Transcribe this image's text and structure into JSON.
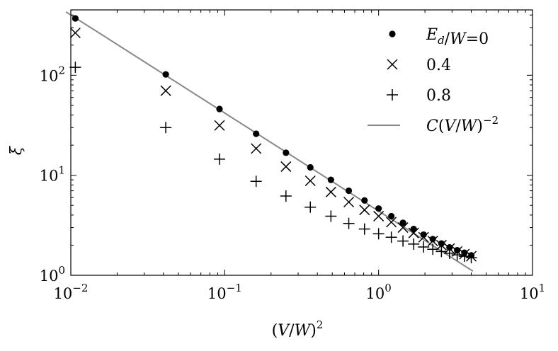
{
  "chart_data": {
    "type": "scatter",
    "xscale": "log",
    "yscale": "log",
    "xlim": [
      0.01,
      10
    ],
    "ylim": [
      1,
      450
    ],
    "xlabel": "(V/W)^2",
    "ylabel": "ξ",
    "x_ticks": [
      {
        "value": 0.01,
        "base": "10",
        "exp": "−2"
      },
      {
        "value": 0.1,
        "base": "10",
        "exp": "−1"
      },
      {
        "value": 1,
        "base": "10",
        "exp": "0"
      },
      {
        "value": 10,
        "base": "10",
        "exp": "1"
      }
    ],
    "y_ticks": [
      {
        "value": 1,
        "base": "10",
        "exp": "0"
      },
      {
        "value": 10,
        "base": "10",
        "exp": "1"
      },
      {
        "value": 100,
        "base": "10",
        "exp": "2"
      }
    ],
    "series": [
      {
        "name": "E_d/W=0",
        "marker": "dot",
        "x": [
          0.0107,
          0.0414,
          0.0925,
          0.16,
          0.25,
          0.36,
          0.49,
          0.64,
          0.81,
          1.0,
          1.21,
          1.44,
          1.69,
          1.96,
          2.25,
          2.56,
          2.89,
          3.24,
          3.61,
          4.0
        ],
        "y": [
          370,
          102,
          46,
          26,
          16.8,
          12.0,
          9.0,
          7.0,
          5.6,
          4.65,
          3.9,
          3.35,
          2.9,
          2.55,
          2.3,
          2.08,
          1.9,
          1.78,
          1.68,
          1.58
        ]
      },
      {
        "name": "0.4",
        "marker": "x",
        "x": [
          0.0107,
          0.0414,
          0.0925,
          0.16,
          0.25,
          0.36,
          0.49,
          0.64,
          0.81,
          1.0,
          1.21,
          1.44,
          1.69,
          1.96,
          2.25,
          2.56,
          2.89,
          3.24,
          3.61,
          4.0
        ],
        "y": [
          265,
          70,
          31.5,
          18.5,
          12.2,
          8.8,
          6.8,
          5.4,
          4.5,
          3.9,
          3.4,
          3.0,
          2.65,
          2.4,
          2.2,
          2.0,
          1.85,
          1.73,
          1.63,
          1.55
        ]
      },
      {
        "name": "0.8",
        "marker": "plus",
        "x": [
          0.0107,
          0.0414,
          0.0925,
          0.16,
          0.25,
          0.36,
          0.49,
          0.64,
          0.81,
          1.0,
          1.21,
          1.44,
          1.69,
          1.96,
          2.25,
          2.56,
          2.89,
          3.24,
          3.61,
          4.0
        ],
        "y": [
          120,
          30,
          14.5,
          8.7,
          6.2,
          4.8,
          3.9,
          3.3,
          2.9,
          2.6,
          2.4,
          2.2,
          2.05,
          1.92,
          1.82,
          1.73,
          1.66,
          1.6,
          1.55,
          1.5
        ]
      },
      {
        "name": "C(V/W)^−2",
        "marker": "line",
        "color": "#888888",
        "x": [
          0.0093,
          4.1
        ],
        "y": [
          430,
          1.1
        ]
      }
    ],
    "legend": {
      "position": "top-right",
      "entries": [
        {
          "label_html": "E_d/W=0",
          "parts": [
            {
              "t": "E",
              "italic": true
            },
            {
              "t": "d",
              "italic": true,
              "sub": true
            },
            {
              "t": "/",
              "italic": false
            },
            {
              "t": "W",
              "italic": true
            },
            {
              "t": "=0",
              "italic": false
            }
          ]
        },
        {
          "parts": [
            {
              "t": "0.4",
              "italic": false
            }
          ]
        },
        {
          "parts": [
            {
              "t": "0.8",
              "italic": false
            }
          ]
        },
        {
          "parts": [
            {
              "t": "C",
              "italic": true
            },
            {
              "t": "(",
              "italic": false
            },
            {
              "t": "V",
              "italic": true
            },
            {
              "t": "/",
              "italic": false
            },
            {
              "t": "W",
              "italic": true
            },
            {
              "t": ")",
              "italic": false
            },
            {
              "t": "−2",
              "italic": false,
              "sup": true
            }
          ]
        }
      ]
    },
    "colors": {
      "markers": "#000000",
      "fit_line": "#888888"
    }
  }
}
